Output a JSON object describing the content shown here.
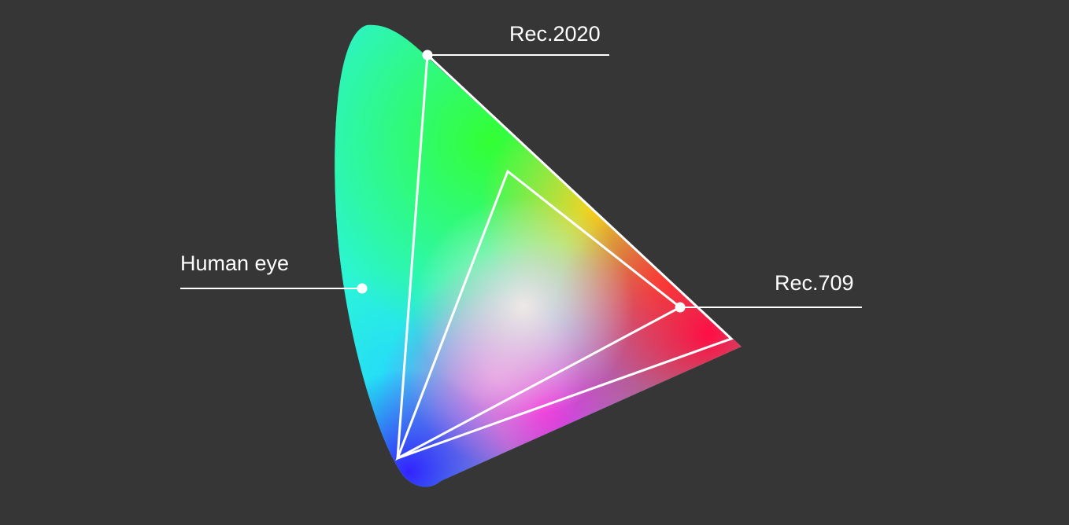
{
  "labels": {
    "human_eye": "Human eye",
    "rec2020": "Rec.2020",
    "rec709": "Rec.709"
  },
  "colors": {
    "background": "#363636",
    "outline": "#ffffff",
    "green": "#33ff44",
    "cyan": "#2bf0e0",
    "blue": "#3a2cff",
    "red": "#ff1a4a",
    "magenta": "#e62ee0",
    "yellow": "#ffd21a"
  }
}
